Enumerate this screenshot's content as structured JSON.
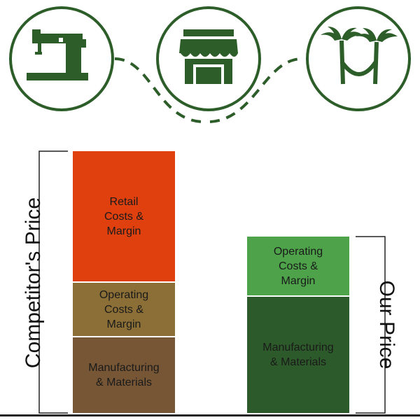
{
  "colors": {
    "stroke_green": "#2d5e2a",
    "retail": "#e0400e",
    "competitor_operating": "#8b6f36",
    "competitor_manufacturing": "#775636",
    "our_operating": "#4da24a",
    "our_manufacturing": "#2d5a2a",
    "baseline": "#222222"
  },
  "icons": [
    "sewing-machine-icon",
    "storefront-icon",
    "palm-trees-hammock-icon"
  ],
  "competitor": {
    "label": "Competitor's Price",
    "segments": {
      "retail": "Retail\nCosts &\nMargin",
      "operating": "Operating\nCosts &\nMargin",
      "manufacturing": "Manufacturing\n& Materials"
    }
  },
  "ours": {
    "label": "Our Price",
    "segments": {
      "operating": "Operating\nCosts &\nMargin",
      "manufacturing": "Manufacturing\n& Materials"
    }
  }
}
